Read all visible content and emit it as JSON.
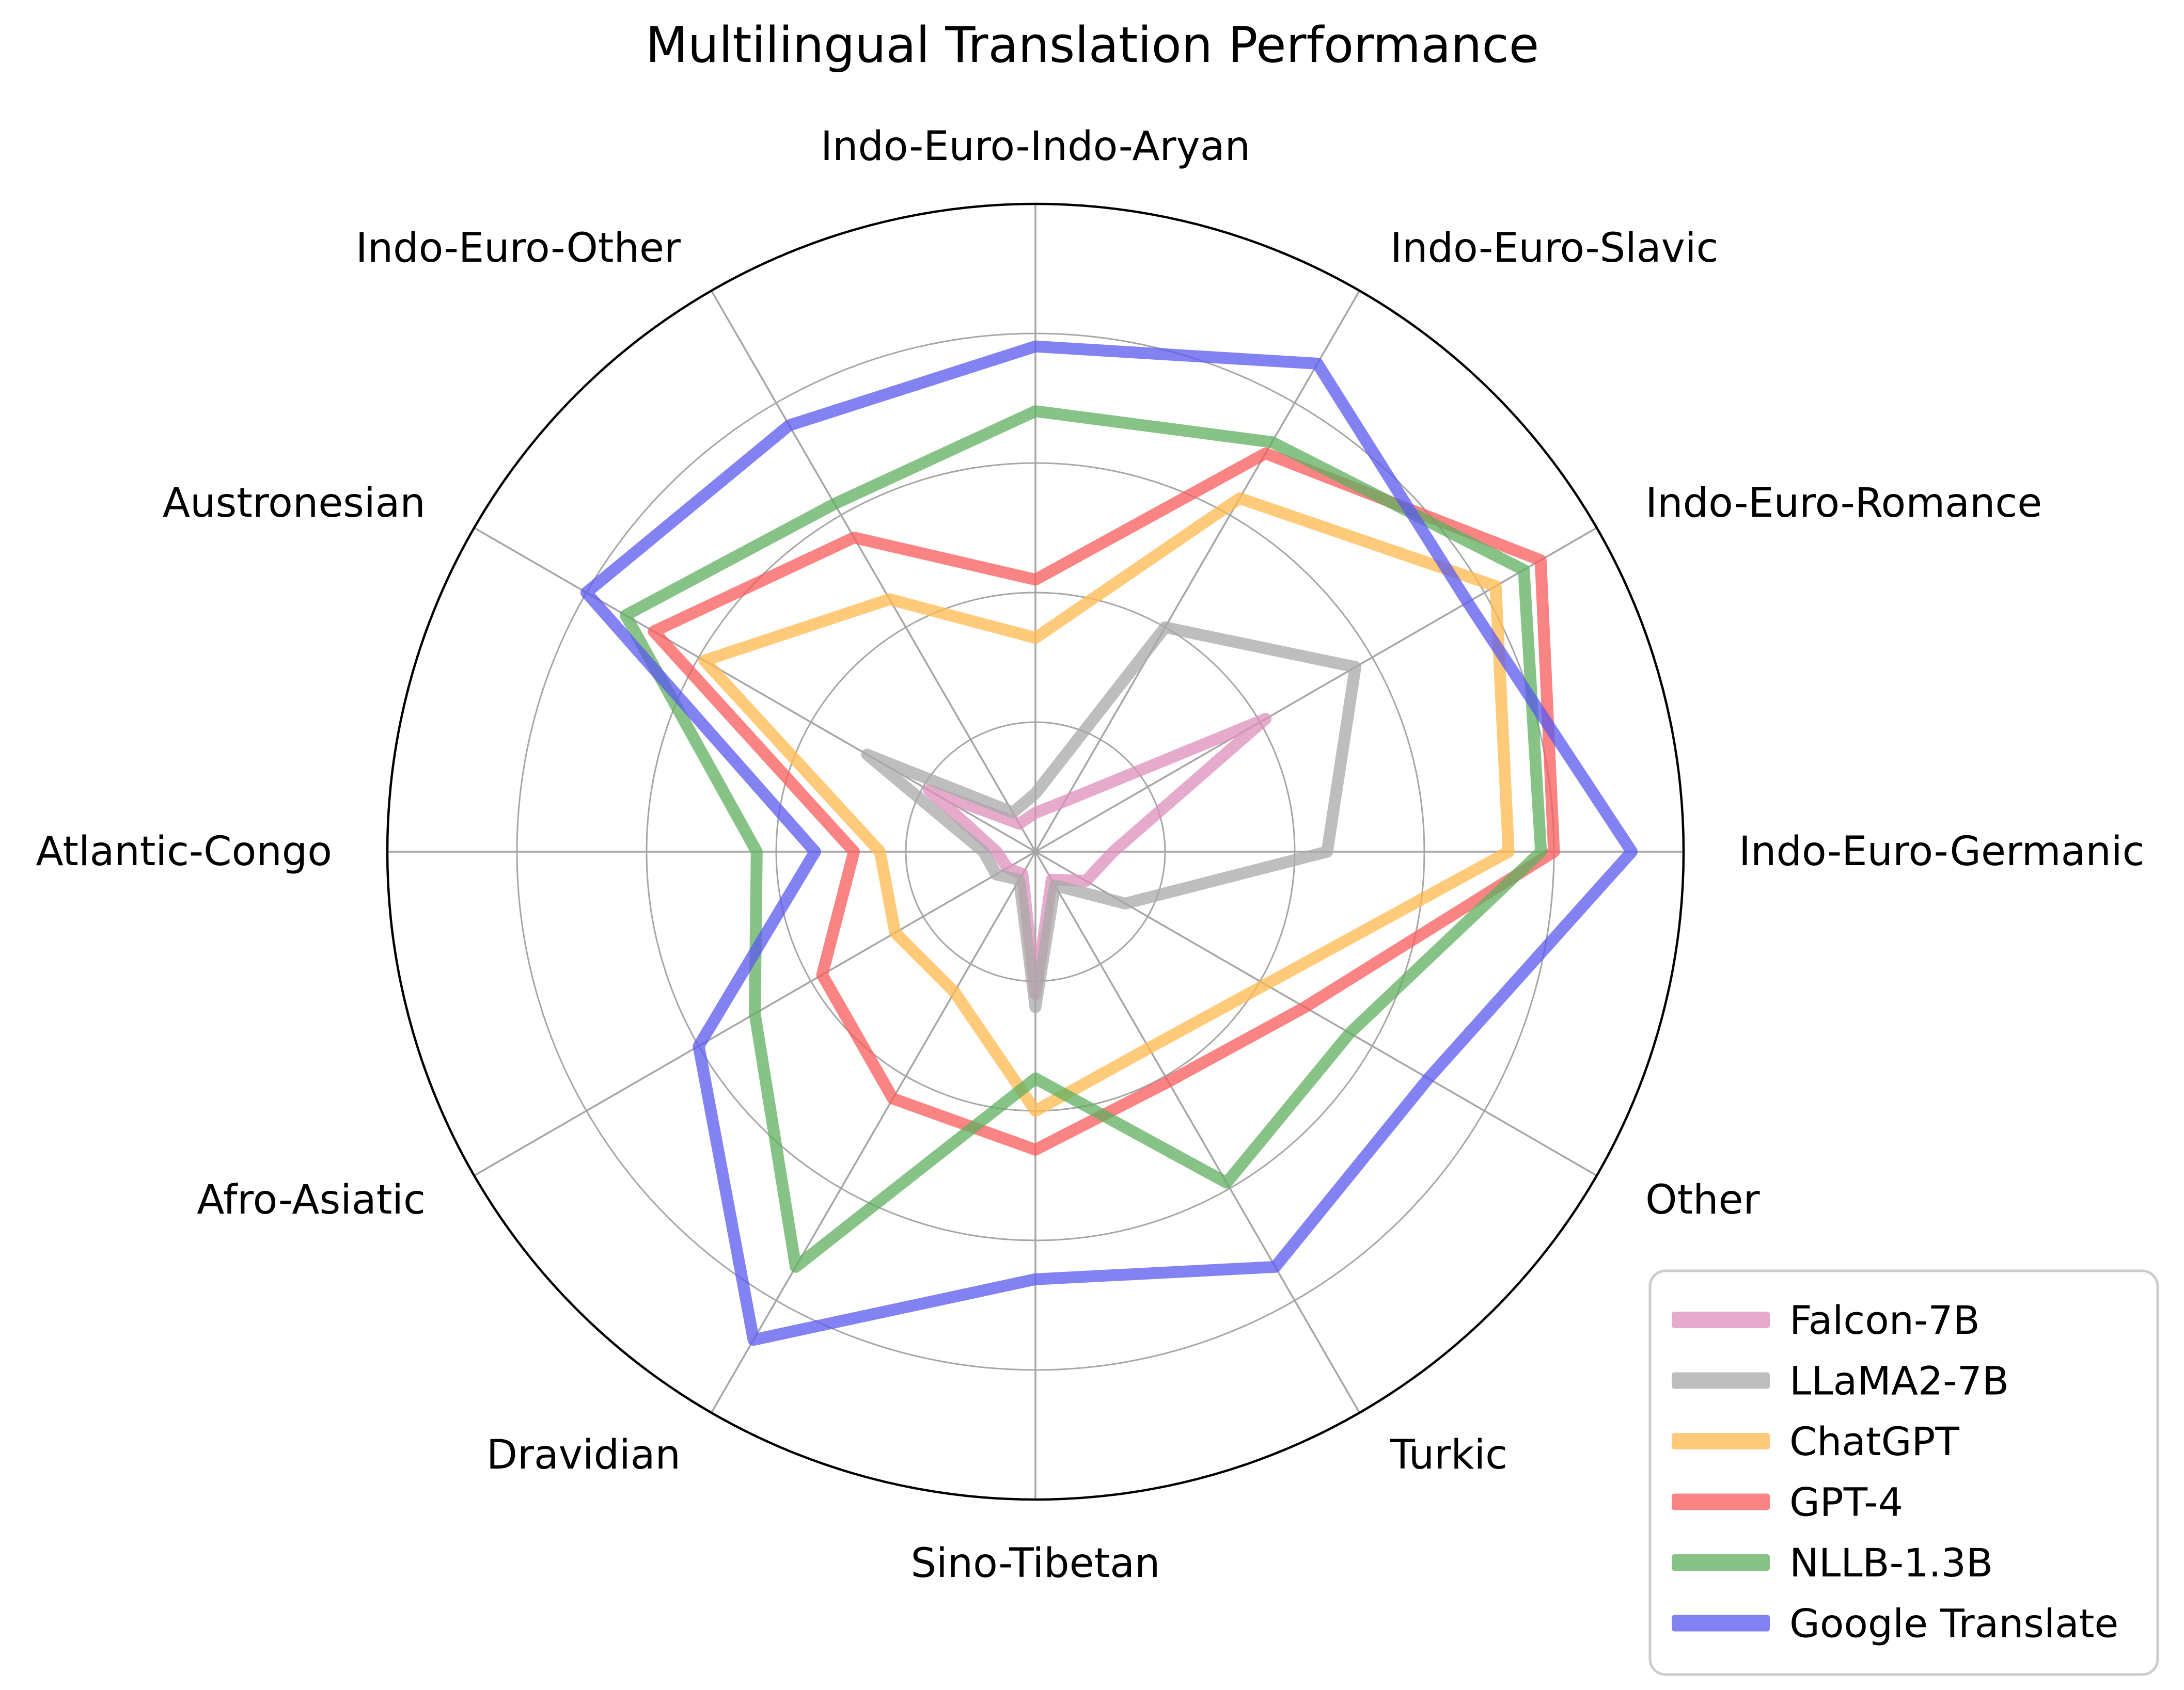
{
  "title": "Multilingual Translation Performance",
  "chart_data": {
    "type": "radar",
    "title": "Multilingual Translation Performance",
    "categories": [
      "Indo-Euro-Indo-Aryan",
      "Indo-Euro-Slavic",
      "Indo-Euro-Romance",
      "Indo-Euro-Germanic",
      "Other",
      "Turkic",
      "Sino-Tibetan",
      "Dravidian",
      "Afro-Asiatic",
      "Atlantic-Congo",
      "Austronesian",
      "Indo-Euro-Other"
    ],
    "series": [
      {
        "name": "Falcon-7B",
        "color": "#DD8FBB",
        "values": [
          3.0,
          4.5,
          20.5,
          6.0,
          4.5,
          2.5,
          11.0,
          2.0,
          2.5,
          3.0,
          9.5,
          2.5
        ]
      },
      {
        "name": "LLaMA2-7B",
        "color": "#A8A8A8",
        "values": [
          4.5,
          20.0,
          28.5,
          22.5,
          8.0,
          3.0,
          12.0,
          2.5,
          3.5,
          4.0,
          15.0,
          3.5
        ]
      },
      {
        "name": "ChatGPT",
        "color": "#FFB84D",
        "values": [
          16.5,
          31.5,
          41.0,
          36.5,
          20.5,
          17.5,
          20.0,
          12.5,
          12.5,
          12.0,
          29.5,
          22.5
        ]
      },
      {
        "name": "GPT-4",
        "color": "#F85A5A",
        "values": [
          21.0,
          35.5,
          45.0,
          40.0,
          24.0,
          20.5,
          23.0,
          22.0,
          19.0,
          14.0,
          34.0,
          28.0
        ]
      },
      {
        "name": "NLLB-1.3B",
        "color": "#5FAF5F",
        "values": [
          34.0,
          36.5,
          43.5,
          39.0,
          28.0,
          29.5,
          17.5,
          37.0,
          25.0,
          21.5,
          36.5,
          31.0
        ]
      },
      {
        "name": "Google Translate",
        "color": "#5A58EE",
        "values": [
          39.0,
          43.5,
          38.5,
          46.0,
          35.0,
          37.0,
          33.0,
          43.5,
          30.0,
          17.0,
          40.0,
          38.0
        ]
      }
    ],
    "rmax": 50,
    "rmin": 0,
    "gridline_values": [
      10,
      20,
      30,
      40
    ],
    "radial_tick_labels_hidden": true,
    "grid": true,
    "start_angle": "top",
    "direction": "clockwise",
    "legend_position": "lower-right",
    "line_opacity": 0.75,
    "grid_color": "#A6A6A6",
    "outer_ring_color": "#000000",
    "legend_border_color": "#CCCCCC"
  }
}
